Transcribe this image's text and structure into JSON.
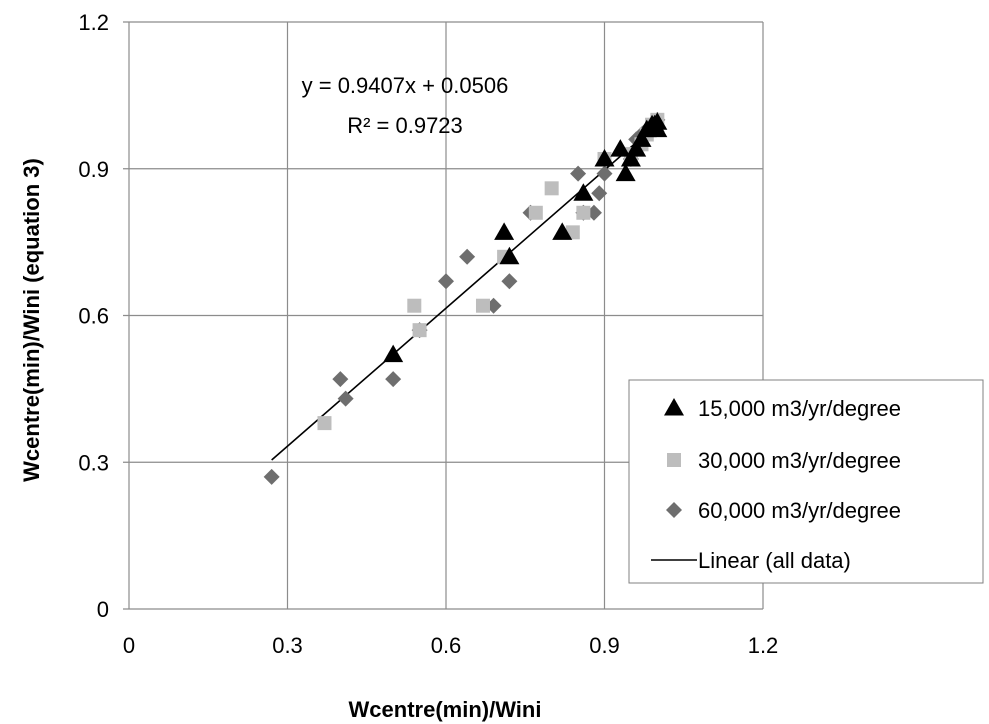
{
  "chart_data": {
    "type": "scatter",
    "xlabel": "Wcentre(min)/Wini",
    "ylabel": "Wcentre(min)/Wini (equation 3)",
    "xlim": [
      0,
      1.2
    ],
    "ylim": [
      0,
      1.2
    ],
    "x_ticks": [
      "0",
      "0.3",
      "0.6",
      "0.9",
      "1.2"
    ],
    "y_ticks": [
      "0",
      "0.3",
      "0.6",
      "0.9",
      "1.2"
    ],
    "grid": true,
    "legend_position": "bottom-right",
    "series": [
      {
        "name": "15,000 m3/yr/degree",
        "marker": "triangle",
        "color": "#000000",
        "points": [
          [
            0.5,
            0.52
          ],
          [
            0.71,
            0.77
          ],
          [
            0.72,
            0.72
          ],
          [
            0.82,
            0.77
          ],
          [
            0.86,
            0.85
          ],
          [
            0.9,
            0.92
          ],
          [
            0.93,
            0.94
          ],
          [
            0.94,
            0.89
          ],
          [
            0.95,
            0.92
          ],
          [
            0.96,
            0.94
          ],
          [
            0.97,
            0.96
          ],
          [
            0.98,
            0.98
          ],
          [
            0.99,
            0.99
          ],
          [
            1.0,
            0.98
          ],
          [
            0.995,
            0.99
          ],
          [
            1.0,
            0.995
          ]
        ]
      },
      {
        "name": "30,000 m3/yr/degree",
        "marker": "square",
        "color": "#bdbdbd",
        "points": [
          [
            0.37,
            0.38
          ],
          [
            0.54,
            0.62
          ],
          [
            0.55,
            0.57
          ],
          [
            0.67,
            0.62
          ],
          [
            0.71,
            0.72
          ],
          [
            0.77,
            0.81
          ],
          [
            0.8,
            0.86
          ],
          [
            0.84,
            0.77
          ],
          [
            0.86,
            0.81
          ],
          [
            0.9,
            0.92
          ],
          [
            0.95,
            0.93
          ],
          [
            0.97,
            0.95
          ],
          [
            0.98,
            0.97
          ],
          [
            0.99,
            0.99
          ],
          [
            1.0,
            1.0
          ]
        ]
      },
      {
        "name": "60,000 m3/yr/degree",
        "marker": "diamond",
        "color": "#6e6e6e",
        "points": [
          [
            0.27,
            0.27
          ],
          [
            0.4,
            0.47
          ],
          [
            0.41,
            0.43
          ],
          [
            0.5,
            0.47
          ],
          [
            0.55,
            0.57
          ],
          [
            0.6,
            0.67
          ],
          [
            0.64,
            0.72
          ],
          [
            0.69,
            0.62
          ],
          [
            0.72,
            0.67
          ],
          [
            0.76,
            0.81
          ],
          [
            0.85,
            0.89
          ],
          [
            0.86,
            0.81
          ],
          [
            0.88,
            0.81
          ],
          [
            0.89,
            0.85
          ],
          [
            0.9,
            0.89
          ],
          [
            0.95,
            0.92
          ],
          [
            0.96,
            0.96
          ],
          [
            0.97,
            0.97
          ],
          [
            0.98,
            0.98
          ],
          [
            0.99,
            0.99
          ],
          [
            1.0,
            1.0
          ]
        ]
      },
      {
        "name": "Linear (all data)",
        "marker": "line",
        "color": "#000000",
        "slope": 0.9407,
        "intercept": 0.0506,
        "x_range": [
          0.27,
          1.0
        ]
      }
    ],
    "annotations": [
      "y = 0.9407x + 0.0506",
      "R² = 0.9723"
    ]
  }
}
